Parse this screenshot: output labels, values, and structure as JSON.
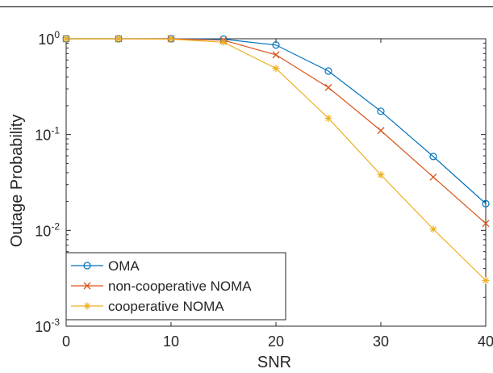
{
  "chart_data": {
    "type": "line",
    "xlabel": "SNR",
    "ylabel": "Outage Probability",
    "xlim": [
      0,
      40
    ],
    "ylim": [
      0.001,
      1
    ],
    "yscale": "log",
    "grid": false,
    "legend_position": "bottom-left",
    "x_ticks": [
      0,
      10,
      20,
      30,
      40
    ],
    "x_tick_labels": [
      "0",
      "10",
      "20",
      "30",
      "40"
    ],
    "y_ticks": [
      0.001,
      0.01,
      0.1,
      1
    ],
    "y_tick_labels": [
      {
        "base": "10",
        "exp": "-3"
      },
      {
        "base": "10",
        "exp": "-2"
      },
      {
        "base": "10",
        "exp": "-1"
      },
      {
        "base": "10",
        "exp": "0"
      }
    ],
    "x": [
      0,
      5,
      10,
      15,
      20,
      25,
      30,
      35,
      40
    ],
    "series": [
      {
        "name": "OMA",
        "color": "#0072BD",
        "marker": "circle",
        "values": [
          1.0,
          1.0,
          1.0,
          0.99,
          0.86,
          0.46,
          0.175,
          0.059,
          0.019
        ]
      },
      {
        "name": "non-cooperative NOMA",
        "color": "#D95319",
        "marker": "x",
        "values": [
          1.0,
          1.0,
          1.0,
          0.965,
          0.68,
          0.31,
          0.11,
          0.036,
          0.0118
        ]
      },
      {
        "name": "cooperative NOMA",
        "color": "#EDB120",
        "marker": "asterisk",
        "values": [
          1.0,
          1.0,
          0.99,
          0.92,
          0.49,
          0.148,
          0.038,
          0.0103,
          0.003
        ]
      }
    ]
  }
}
